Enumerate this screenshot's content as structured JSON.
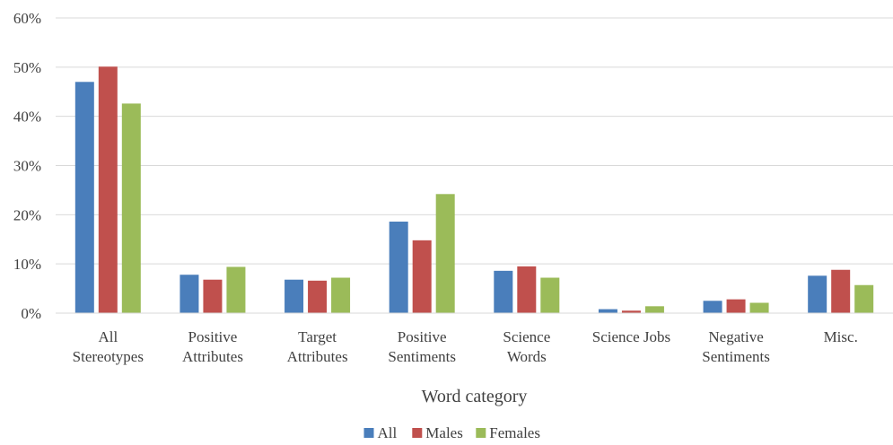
{
  "chart_data": {
    "type": "bar",
    "title": "",
    "xlabel": "Word category",
    "ylabel": "",
    "ylim": [
      0,
      0.6
    ],
    "yticks": [
      "0%",
      "10%",
      "20%",
      "30%",
      "40%",
      "50%",
      "60%"
    ],
    "grid": true,
    "legend_position": "bottom",
    "categories": [
      [
        "All",
        "Stereotypes"
      ],
      [
        "Positive",
        "Attributes"
      ],
      [
        "Target",
        "Attributes"
      ],
      [
        "Positive",
        "Sentiments"
      ],
      [
        "Science",
        "Words"
      ],
      [
        "Science Jobs"
      ],
      [
        "Negative",
        "Sentiments"
      ],
      [
        "Misc."
      ]
    ],
    "series": [
      {
        "name": "All",
        "color": "#4a7ebb",
        "values": [
          0.47,
          0.078,
          0.068,
          0.186,
          0.086,
          0.008,
          0.025,
          0.076
        ]
      },
      {
        "name": "Males",
        "color": "#c0504d",
        "values": [
          0.501,
          0.068,
          0.066,
          0.148,
          0.095,
          0.005,
          0.028,
          0.088
        ]
      },
      {
        "name": "Females",
        "color": "#9bbb59",
        "values": [
          0.426,
          0.094,
          0.072,
          0.242,
          0.072,
          0.014,
          0.021,
          0.057
        ]
      }
    ]
  }
}
